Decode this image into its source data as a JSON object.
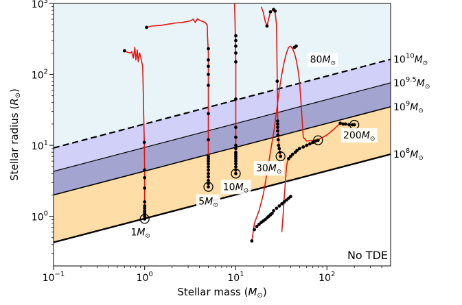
{
  "chart_data": {
    "type": "line",
    "title": "",
    "xlabel_text": "Stellar mass (",
    "xlabel_sym": "M",
    "xlabel_sub": "⊙",
    "xlabel_end": ")",
    "ylabel_text": "Stellar radius (",
    "ylabel_sym": "R",
    "ylabel_sub": "⊙",
    "ylabel_end": ")",
    "xscale": "log",
    "yscale": "log",
    "xlim": [
      0.1,
      500
    ],
    "ylim": [
      0.2,
      1000
    ],
    "grid": false,
    "x_tick_labels": [
      {
        "base": "10",
        "exp": "−1",
        "value": 0.1
      },
      {
        "base": "10",
        "exp": "0",
        "value": 1
      },
      {
        "base": "10",
        "exp": "1",
        "value": 10
      },
      {
        "base": "10",
        "exp": "2",
        "value": 100
      }
    ],
    "y_tick_labels": [
      {
        "base": "10",
        "exp": "0",
        "value": 1
      },
      {
        "base": "10",
        "exp": "1",
        "value": 10
      },
      {
        "base": "10",
        "exp": "2",
        "value": 100
      },
      {
        "base": "10",
        "exp": "3",
        "value": 1000
      }
    ],
    "regions": [
      {
        "name": "above 10^10",
        "color": "#e8f4f8"
      },
      {
        "name": "10^9.5 - 10^10",
        "color": "#d0d0f8"
      },
      {
        "name": "10^9 - 10^9.5",
        "color": "#a4a4d0"
      },
      {
        "name": "10^8 - 10^9",
        "color": "#fedda6"
      },
      {
        "name": "No TDE",
        "color": "#ffffff"
      }
    ],
    "boundary_lines": [
      {
        "label_base": "10",
        "label_exp": "10",
        "label_unit": "M",
        "label_sub": "⊙",
        "x": [
          0.1,
          500
        ],
        "y": [
          9.2,
          163
        ],
        "style": "dashed",
        "width": 2.2
      },
      {
        "label_base": "10",
        "label_exp": "9.5",
        "label_unit": "M",
        "label_sub": "⊙",
        "x": [
          0.1,
          500
        ],
        "y": [
          4.3,
          76
        ],
        "style": "solid",
        "width": 1.2
      },
      {
        "label_base": "10",
        "label_exp": "9",
        "label_unit": "M",
        "label_sub": "⊙",
        "x": [
          0.1,
          500
        ],
        "y": [
          2.0,
          35
        ],
        "style": "solid",
        "width": 1.6
      },
      {
        "label_base": "10",
        "label_exp": "8",
        "label_unit": "M",
        "label_sub": "⊙",
        "x": [
          0.1,
          500
        ],
        "y": [
          0.43,
          7.5
        ],
        "style": "solid",
        "width": 2.4
      }
    ],
    "no_tde_label": "No TDE",
    "series": [
      {
        "label": "1",
        "label_unit": "M",
        "label_sub": "⊙",
        "track": [
          [
            1.0,
            0.92
          ],
          [
            1.0,
            1.3
          ],
          [
            1.0,
            2.0
          ],
          [
            1.0,
            4.5
          ],
          [
            0.99,
            11
          ],
          [
            0.98,
            20
          ],
          [
            0.96,
            80
          ],
          [
            0.95,
            130
          ],
          [
            0.9,
            180
          ],
          [
            0.88,
            200
          ],
          [
            0.85,
            150
          ],
          [
            0.83,
            220
          ],
          [
            0.8,
            160
          ],
          [
            0.78,
            240
          ],
          [
            0.75,
            170
          ],
          [
            0.72,
            210
          ],
          [
            0.7,
            200
          ],
          [
            0.65,
            205
          ],
          [
            0.6,
            215
          ]
        ],
        "dots": [
          [
            1.0,
            0.92
          ],
          [
            1.0,
            1.0
          ],
          [
            1.0,
            1.05
          ],
          [
            1.0,
            1.1
          ],
          [
            1.0,
            1.15
          ],
          [
            1.0,
            1.2
          ],
          [
            1.0,
            1.3
          ],
          [
            1.0,
            1.4
          ],
          [
            1.0,
            1.6
          ],
          [
            1.0,
            2.5
          ],
          [
            1.0,
            3.5
          ],
          [
            1.0,
            4.5
          ],
          [
            0.99,
            11
          ],
          [
            0.6,
            215
          ]
        ],
        "marker": [
          1.0,
          0.92
        ]
      },
      {
        "label": "5",
        "label_unit": "M",
        "label_sub": "⊙",
        "track": [
          [
            5.0,
            2.6
          ],
          [
            5.0,
            3.5
          ],
          [
            5.0,
            7
          ],
          [
            5.0,
            12
          ],
          [
            5.0,
            28
          ],
          [
            5.0,
            70
          ],
          [
            5.0,
            200
          ],
          [
            4.9,
            330
          ],
          [
            4.85,
            500
          ],
          [
            4.6,
            540
          ],
          [
            4.3,
            560
          ],
          [
            4.0,
            580
          ],
          [
            3.8,
            610
          ],
          [
            3.6,
            540
          ],
          [
            3.4,
            600
          ],
          [
            3.2,
            570
          ],
          [
            3.0,
            560
          ],
          [
            2.6,
            540
          ],
          [
            2.2,
            530
          ],
          [
            1.8,
            510
          ],
          [
            1.5,
            490
          ],
          [
            1.2,
            480
          ],
          [
            1.05,
            460
          ]
        ],
        "dots": [
          [
            5.0,
            2.6
          ],
          [
            5.0,
            2.9
          ],
          [
            5.0,
            3.2
          ],
          [
            5.0,
            3.6
          ],
          [
            5.0,
            4.0
          ],
          [
            5.0,
            4.5
          ],
          [
            5.0,
            5.0
          ],
          [
            5.0,
            5.5
          ],
          [
            5.0,
            6.0
          ],
          [
            5.0,
            6.5
          ],
          [
            5.0,
            7.0
          ],
          [
            5.0,
            12
          ],
          [
            5.0,
            28
          ],
          [
            5.0,
            70
          ],
          [
            5.0,
            100
          ],
          [
            5.0,
            130
          ],
          [
            5.0,
            160
          ],
          [
            5.0,
            230
          ],
          [
            1.05,
            460
          ]
        ],
        "marker": [
          5.0,
          2.6
        ]
      },
      {
        "label": "10",
        "label_unit": "M",
        "label_sub": "⊙",
        "track": [
          [
            10.0,
            4.0
          ],
          [
            10.0,
            5
          ],
          [
            10.0,
            8
          ],
          [
            10.0,
            20
          ],
          [
            10.0,
            40
          ],
          [
            10.0,
            80
          ],
          [
            10.0,
            150
          ],
          [
            9.9,
            300
          ],
          [
            9.8,
            600
          ],
          [
            9.7,
            1000
          ]
        ],
        "dots": [
          [
            10.0,
            4.0
          ],
          [
            10.0,
            4.5
          ],
          [
            10.0,
            5.0
          ],
          [
            10.0,
            5.5
          ],
          [
            10.0,
            6.0
          ],
          [
            10.0,
            6.5
          ],
          [
            10.0,
            7.0
          ],
          [
            10.0,
            7.5
          ],
          [
            10.0,
            8.0
          ],
          [
            10.0,
            9.0
          ],
          [
            10.0,
            10
          ],
          [
            10.0,
            13
          ],
          [
            10.0,
            18
          ],
          [
            10.0,
            45
          ],
          [
            10.0,
            150
          ],
          [
            10.0,
            200
          ],
          [
            10.0,
            250
          ],
          [
            10.0,
            300
          ],
          [
            10.0,
            350
          ]
        ],
        "marker": [
          10.0,
          4.0
        ]
      },
      {
        "label": "30",
        "label_unit": "M",
        "label_sub": "⊙",
        "track": [
          [
            31.0,
            7.0
          ],
          [
            30.0,
            9
          ],
          [
            29.5,
            12
          ],
          [
            29.0,
            16
          ],
          [
            28.8,
            25
          ],
          [
            28.5,
            80
          ],
          [
            28.0,
            500
          ],
          [
            27.0,
            780
          ],
          [
            26.0,
            820
          ],
          [
            24.0,
            760
          ],
          [
            22.0,
            480
          ],
          [
            21.0,
            560
          ],
          [
            20.0,
            760
          ],
          [
            19.0,
            900
          ]
        ],
        "dots": [
          [
            31.0,
            7.0
          ],
          [
            30.5,
            8
          ],
          [
            30.0,
            9
          ],
          [
            29.5,
            10
          ],
          [
            29.2,
            12
          ],
          [
            29.0,
            14
          ],
          [
            28.8,
            16
          ],
          [
            28.8,
            18
          ],
          [
            28.8,
            20
          ],
          [
            28.8,
            22
          ],
          [
            28.5,
            80
          ],
          [
            27.0,
            780
          ],
          [
            26.0,
            820
          ],
          [
            24.0,
            760
          ],
          [
            22.0,
            480
          ]
        ],
        "marker": [
          31.0,
          7.0
        ]
      },
      {
        "label": "80",
        "label_unit": "M",
        "label_sub": "⊙",
        "track": [
          [
            80.0,
            11.8
          ],
          [
            70,
            11
          ],
          [
            60,
            10
          ],
          [
            50,
            9
          ],
          [
            45,
            8
          ],
          [
            40,
            7
          ],
          [
            37,
            6
          ],
          [
            36,
            5
          ],
          [
            35,
            3
          ],
          [
            34,
            1.8
          ],
          [
            33,
            1.0
          ],
          [
            32,
            0.6
          ]
        ],
        "dots": [
          [
            80.0,
            11.8
          ],
          [
            75,
            11.5
          ],
          [
            70,
            11
          ],
          [
            65,
            10.5
          ],
          [
            60,
            10
          ],
          [
            55,
            9.5
          ],
          [
            50,
            9
          ],
          [
            47,
            8.5
          ],
          [
            45,
            8
          ],
          [
            42,
            7.5
          ],
          [
            40,
            7
          ],
          [
            38,
            6.5
          ]
        ],
        "marker": [
          80.0,
          11.8
        ]
      },
      {
        "label": "200",
        "label_unit": "M",
        "label_sub": "⊙",
        "track": [
          [
            200,
            19.5
          ],
          [
            180,
            19.5
          ],
          [
            160,
            20
          ],
          [
            140,
            20.5
          ],
          [
            120,
            17
          ],
          [
            100,
            14
          ],
          [
            90,
            13
          ],
          [
            80,
            12
          ],
          [
            60,
            11.5
          ],
          [
            55,
            13
          ],
          [
            52,
            40
          ],
          [
            50,
            80
          ],
          [
            48,
            120
          ],
          [
            46,
            160
          ],
          [
            44,
            200
          ],
          [
            42,
            230
          ],
          [
            40,
            250
          ],
          [
            38,
            240
          ],
          [
            36,
            200
          ],
          [
            34,
            150
          ],
          [
            32,
            100
          ],
          [
            30,
            60
          ],
          [
            28,
            30
          ],
          [
            26,
            15
          ],
          [
            24,
            8
          ],
          [
            22,
            4
          ],
          [
            20,
            2
          ],
          [
            18,
            1.2
          ],
          [
            16,
            0.8
          ],
          [
            15,
            0.45
          ]
        ],
        "dots": [
          [
            200,
            19.5
          ],
          [
            190,
            19.5
          ],
          [
            175,
            19.5
          ],
          [
            160,
            20
          ],
          [
            150,
            20
          ],
          [
            140,
            20.5
          ],
          [
            15,
            0.45
          ],
          [
            16,
            0.65
          ],
          [
            17,
            0.72
          ],
          [
            18,
            0.77
          ],
          [
            19,
            0.82
          ],
          [
            20,
            0.86
          ],
          [
            21,
            0.9
          ],
          [
            22,
            0.95
          ],
          [
            23,
            1.0
          ],
          [
            24,
            1.05
          ],
          [
            25,
            1.1
          ],
          [
            26,
            1.2
          ],
          [
            28,
            1.3
          ],
          [
            30,
            1.4
          ],
          [
            32,
            1.5
          ],
          [
            34,
            1.6
          ],
          [
            36,
            1.7
          ],
          [
            38,
            1.8
          ],
          [
            40,
            1.9
          ],
          [
            44,
            240
          ],
          [
            46,
            250
          ]
        ],
        "marker": [
          200,
          19.5
        ]
      }
    ]
  }
}
